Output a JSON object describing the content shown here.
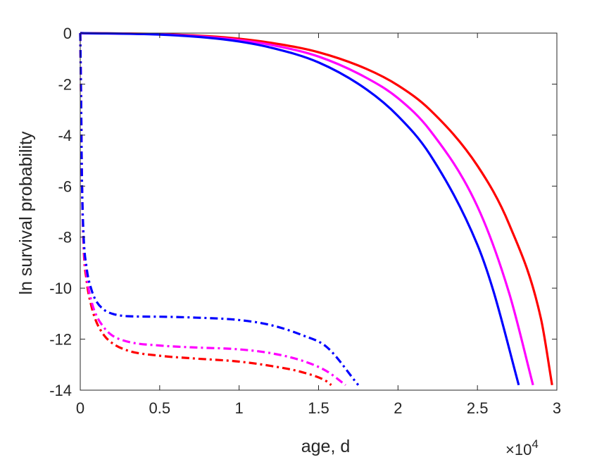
{
  "chart_data": {
    "type": "line",
    "title": "",
    "xlabel": "age, d",
    "ylabel": "ln survival probability",
    "x_exponent_label": {
      "base": "×10",
      "exponent": "4"
    },
    "xlim": [
      0,
      3
    ],
    "ylim": [
      -14,
      0
    ],
    "x_scale_note": "x values in units of 1e4 days",
    "xticks": [
      "0",
      "0.5",
      "1",
      "1.5",
      "2",
      "2.5",
      "3"
    ],
    "yticks": [
      "0",
      "-2",
      "-4",
      "-6",
      "-8",
      "-10",
      "-12",
      "-14"
    ],
    "grid": false,
    "legend": null,
    "series": [
      {
        "color": "#ff0000",
        "style": "solid",
        "x": [
          0.0,
          0.5,
          0.8,
          1.0,
          1.2,
          1.5,
          1.8,
          2.0,
          2.2,
          2.5,
          2.7,
          2.9,
          2.97
        ],
        "y": [
          0.0,
          -0.04,
          -0.12,
          -0.22,
          -0.38,
          -0.75,
          -1.4,
          -2.05,
          -3.0,
          -5.2,
          -7.5,
          -11.2,
          -13.8
        ]
      },
      {
        "color": "#ff00ff",
        "style": "solid",
        "x": [
          0.0,
          0.5,
          0.8,
          1.0,
          1.2,
          1.5,
          1.8,
          2.0,
          2.2,
          2.5,
          2.7,
          2.85
        ],
        "y": [
          0.0,
          -0.05,
          -0.15,
          -0.27,
          -0.46,
          -0.92,
          -1.75,
          -2.55,
          -3.8,
          -6.8,
          -10.2,
          -13.8
        ]
      },
      {
        "color": "#0000ff",
        "style": "solid",
        "x": [
          0.0,
          0.5,
          0.8,
          1.0,
          1.2,
          1.5,
          1.8,
          2.0,
          2.2,
          2.5,
          2.6,
          2.76
        ],
        "y": [
          0.0,
          -0.06,
          -0.18,
          -0.33,
          -0.57,
          -1.15,
          -2.2,
          -3.25,
          -4.75,
          -8.3,
          -10.1,
          -13.8
        ]
      },
      {
        "color": "#ff0000",
        "style": "dashdot",
        "x": [
          0.0,
          0.005,
          0.01,
          0.02,
          0.04,
          0.07,
          0.1,
          0.15,
          0.2,
          0.3,
          0.5,
          0.7,
          1.0,
          1.2,
          1.4,
          1.55,
          1.58
        ],
        "y": [
          0.0,
          -2.5,
          -5.5,
          -8.2,
          -9.7,
          -10.7,
          -11.3,
          -11.85,
          -12.15,
          -12.45,
          -12.65,
          -12.75,
          -12.88,
          -13.05,
          -13.3,
          -13.65,
          -13.8
        ]
      },
      {
        "color": "#ff00ff",
        "style": "dashdot",
        "x": [
          0.0,
          0.005,
          0.01,
          0.02,
          0.04,
          0.07,
          0.1,
          0.15,
          0.2,
          0.3,
          0.5,
          0.7,
          1.0,
          1.2,
          1.4,
          1.55,
          1.67
        ],
        "y": [
          0.0,
          -2.5,
          -5.5,
          -8.0,
          -9.5,
          -10.5,
          -11.05,
          -11.55,
          -11.85,
          -12.1,
          -12.25,
          -12.32,
          -12.4,
          -12.55,
          -12.85,
          -13.25,
          -13.8
        ]
      },
      {
        "color": "#0000ff",
        "style": "dashdot",
        "x": [
          0.0,
          0.005,
          0.01,
          0.02,
          0.04,
          0.07,
          0.1,
          0.15,
          0.2,
          0.3,
          0.5,
          0.7,
          1.0,
          1.2,
          1.4,
          1.55,
          1.75
        ],
        "y": [
          0.0,
          -2.5,
          -5.5,
          -7.8,
          -9.2,
          -10.05,
          -10.5,
          -10.85,
          -11.0,
          -11.1,
          -11.12,
          -11.15,
          -11.25,
          -11.45,
          -11.85,
          -12.3,
          -13.8
        ]
      }
    ]
  }
}
